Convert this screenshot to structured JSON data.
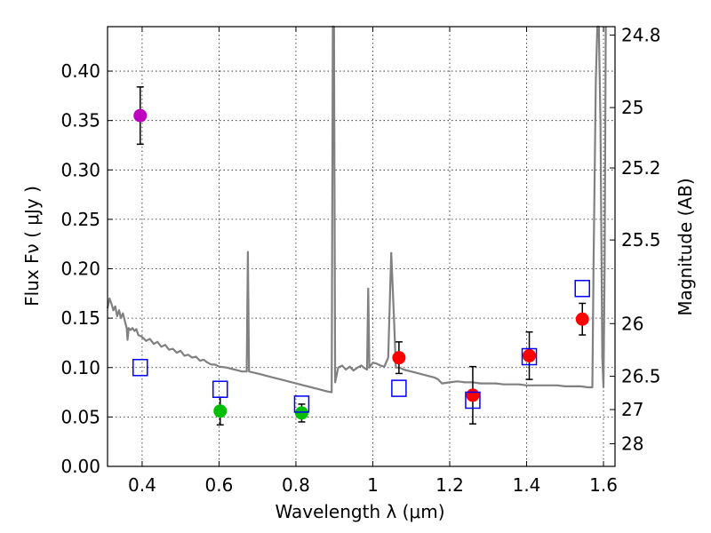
{
  "chart_data": {
    "type": "scatter",
    "title": "",
    "xlabel": "Wavelength  λ (μm)",
    "ylabel": "Flux  Fν  ( μJy )",
    "ylabel_right": "Magnitude (AB)",
    "xlim": [
      0.31,
      1.63
    ],
    "ylim": [
      0.0,
      0.445
    ],
    "grid": true,
    "x_ticks": [
      0.4,
      0.6,
      0.8,
      1.0,
      1.2,
      1.4,
      1.6
    ],
    "x_tick_labels": [
      "0.4",
      "0.6",
      "0.8",
      "1",
      "1.2",
      "1.4",
      "1.6"
    ],
    "y_ticks": [
      0.0,
      0.05,
      0.1,
      0.15,
      0.2,
      0.25,
      0.3,
      0.35,
      0.4
    ],
    "y_tick_labels": [
      "0.00",
      "0.05",
      "0.10",
      "0.15",
      "0.20",
      "0.25",
      "0.30",
      "0.35",
      "0.40"
    ],
    "right_ticks": [
      {
        "label": "24.8",
        "flux": 0.4365
      },
      {
        "label": "25",
        "flux": 0.3631
      },
      {
        "label": "25.2",
        "flux": 0.302
      },
      {
        "label": "25.5",
        "flux": 0.2291
      },
      {
        "label": "26",
        "flux": 0.1445
      },
      {
        "label": "26.5",
        "flux": 0.0912
      },
      {
        "label": "27",
        "flux": 0.0575
      },
      {
        "label": "28",
        "flux": 0.0229
      }
    ],
    "series": [
      {
        "name": "observed (magenta)",
        "marker": "circle",
        "color": "#bf00bf",
        "points": [
          {
            "x": 0.395,
            "y": 0.355,
            "err": 0.029
          }
        ]
      },
      {
        "name": "observed (green)",
        "marker": "circle",
        "color": "#00bf00",
        "points": [
          {
            "x": 0.603,
            "y": 0.056,
            "err": 0.014
          },
          {
            "x": 0.815,
            "y": 0.054,
            "err": 0.009
          }
        ]
      },
      {
        "name": "observed (red)",
        "marker": "circle",
        "color": "#ff0000",
        "points": [
          {
            "x": 1.068,
            "y": 0.11,
            "err": 0.016
          },
          {
            "x": 1.26,
            "y": 0.072,
            "err": 0.029
          },
          {
            "x": 1.407,
            "y": 0.112,
            "err": 0.024
          },
          {
            "x": 1.545,
            "y": 0.149,
            "err": 0.016
          }
        ]
      },
      {
        "name": "model photometry",
        "marker": "square-open",
        "color": "#0000ff",
        "points": [
          {
            "x": 0.395,
            "y": 0.1
          },
          {
            "x": 0.603,
            "y": 0.078
          },
          {
            "x": 0.815,
            "y": 0.063
          },
          {
            "x": 1.068,
            "y": 0.079
          },
          {
            "x": 1.26,
            "y": 0.067
          },
          {
            "x": 1.407,
            "y": 0.111
          },
          {
            "x": 1.545,
            "y": 0.18
          }
        ]
      }
    ],
    "model_spectrum": {
      "name": "template spectrum",
      "color": "#808080",
      "points": [
        [
          0.31,
          0.16
        ],
        [
          0.315,
          0.17
        ],
        [
          0.32,
          0.165
        ],
        [
          0.325,
          0.158
        ],
        [
          0.33,
          0.162
        ],
        [
          0.335,
          0.152
        ],
        [
          0.34,
          0.158
        ],
        [
          0.345,
          0.15
        ],
        [
          0.35,
          0.155
        ],
        [
          0.355,
          0.147
        ],
        [
          0.36,
          0.14
        ],
        [
          0.362,
          0.128
        ],
        [
          0.365,
          0.14
        ],
        [
          0.37,
          0.138
        ],
        [
          0.375,
          0.14
        ],
        [
          0.38,
          0.137
        ],
        [
          0.385,
          0.139
        ],
        [
          0.39,
          0.133
        ],
        [
          0.395,
          0.132
        ],
        [
          0.4,
          0.131
        ],
        [
          0.41,
          0.127
        ],
        [
          0.42,
          0.129
        ],
        [
          0.43,
          0.124
        ],
        [
          0.44,
          0.126
        ],
        [
          0.45,
          0.121
        ],
        [
          0.46,
          0.123
        ],
        [
          0.47,
          0.118
        ],
        [
          0.48,
          0.119
        ],
        [
          0.49,
          0.115
        ],
        [
          0.5,
          0.117
        ],
        [
          0.51,
          0.112
        ],
        [
          0.52,
          0.113
        ],
        [
          0.53,
          0.11
        ],
        [
          0.54,
          0.111
        ],
        [
          0.55,
          0.107
        ],
        [
          0.56,
          0.108
        ],
        [
          0.57,
          0.105
        ],
        [
          0.58,
          0.103
        ],
        [
          0.59,
          0.103
        ],
        [
          0.6,
          0.101
        ],
        [
          0.62,
          0.1
        ],
        [
          0.64,
          0.098
        ],
        [
          0.66,
          0.096
        ],
        [
          0.672,
          0.096
        ],
        [
          0.675,
          0.217
        ],
        [
          0.678,
          0.096
        ],
        [
          0.7,
          0.094
        ],
        [
          0.72,
          0.092
        ],
        [
          0.74,
          0.09
        ],
        [
          0.76,
          0.088
        ],
        [
          0.78,
          0.086
        ],
        [
          0.8,
          0.084
        ],
        [
          0.82,
          0.082
        ],
        [
          0.84,
          0.08
        ],
        [
          0.86,
          0.078
        ],
        [
          0.88,
          0.076
        ],
        [
          0.893,
          0.075
        ],
        [
          0.896,
          0.445
        ],
        [
          0.899,
          0.445
        ],
        [
          0.902,
          0.085
        ],
        [
          0.91,
          0.1
        ],
        [
          0.92,
          0.102
        ],
        [
          0.93,
          0.098
        ],
        [
          0.94,
          0.101
        ],
        [
          0.95,
          0.097
        ],
        [
          0.96,
          0.1
        ],
        [
          0.97,
          0.102
        ],
        [
          0.98,
          0.099
        ],
        [
          0.985,
          0.098
        ],
        [
          0.988,
          0.18
        ],
        [
          0.991,
          0.1
        ],
        [
          1.0,
          0.105
        ],
        [
          1.01,
          0.104
        ],
        [
          1.02,
          0.102
        ],
        [
          1.03,
          0.101
        ],
        [
          1.04,
          0.11
        ],
        [
          1.048,
          0.216
        ],
        [
          1.055,
          0.15
        ],
        [
          1.06,
          0.1
        ],
        [
          1.07,
          0.1
        ],
        [
          1.08,
          0.098
        ],
        [
          1.1,
          0.096
        ],
        [
          1.12,
          0.094
        ],
        [
          1.14,
          0.092
        ],
        [
          1.16,
          0.09
        ],
        [
          1.17,
          0.088
        ],
        [
          1.18,
          0.084
        ],
        [
          1.2,
          0.085
        ],
        [
          1.22,
          0.086
        ],
        [
          1.24,
          0.085
        ],
        [
          1.26,
          0.085
        ],
        [
          1.28,
          0.084
        ],
        [
          1.3,
          0.084
        ],
        [
          1.32,
          0.084
        ],
        [
          1.34,
          0.083
        ],
        [
          1.36,
          0.083
        ],
        [
          1.38,
          0.083
        ],
        [
          1.4,
          0.082
        ],
        [
          1.42,
          0.082
        ],
        [
          1.44,
          0.082
        ],
        [
          1.46,
          0.082
        ],
        [
          1.48,
          0.082
        ],
        [
          1.5,
          0.081
        ],
        [
          1.52,
          0.081
        ],
        [
          1.54,
          0.081
        ],
        [
          1.56,
          0.08
        ],
        [
          1.571,
          0.08
        ],
        [
          1.574,
          0.2
        ],
        [
          1.58,
          0.39
        ],
        [
          1.584,
          0.445
        ],
        [
          1.588,
          0.445
        ],
        [
          1.592,
          0.35
        ],
        [
          1.597,
          0.11
        ],
        [
          1.6,
          0.08
        ],
        [
          1.603,
          0.2
        ],
        [
          1.606,
          0.445
        ]
      ]
    }
  }
}
